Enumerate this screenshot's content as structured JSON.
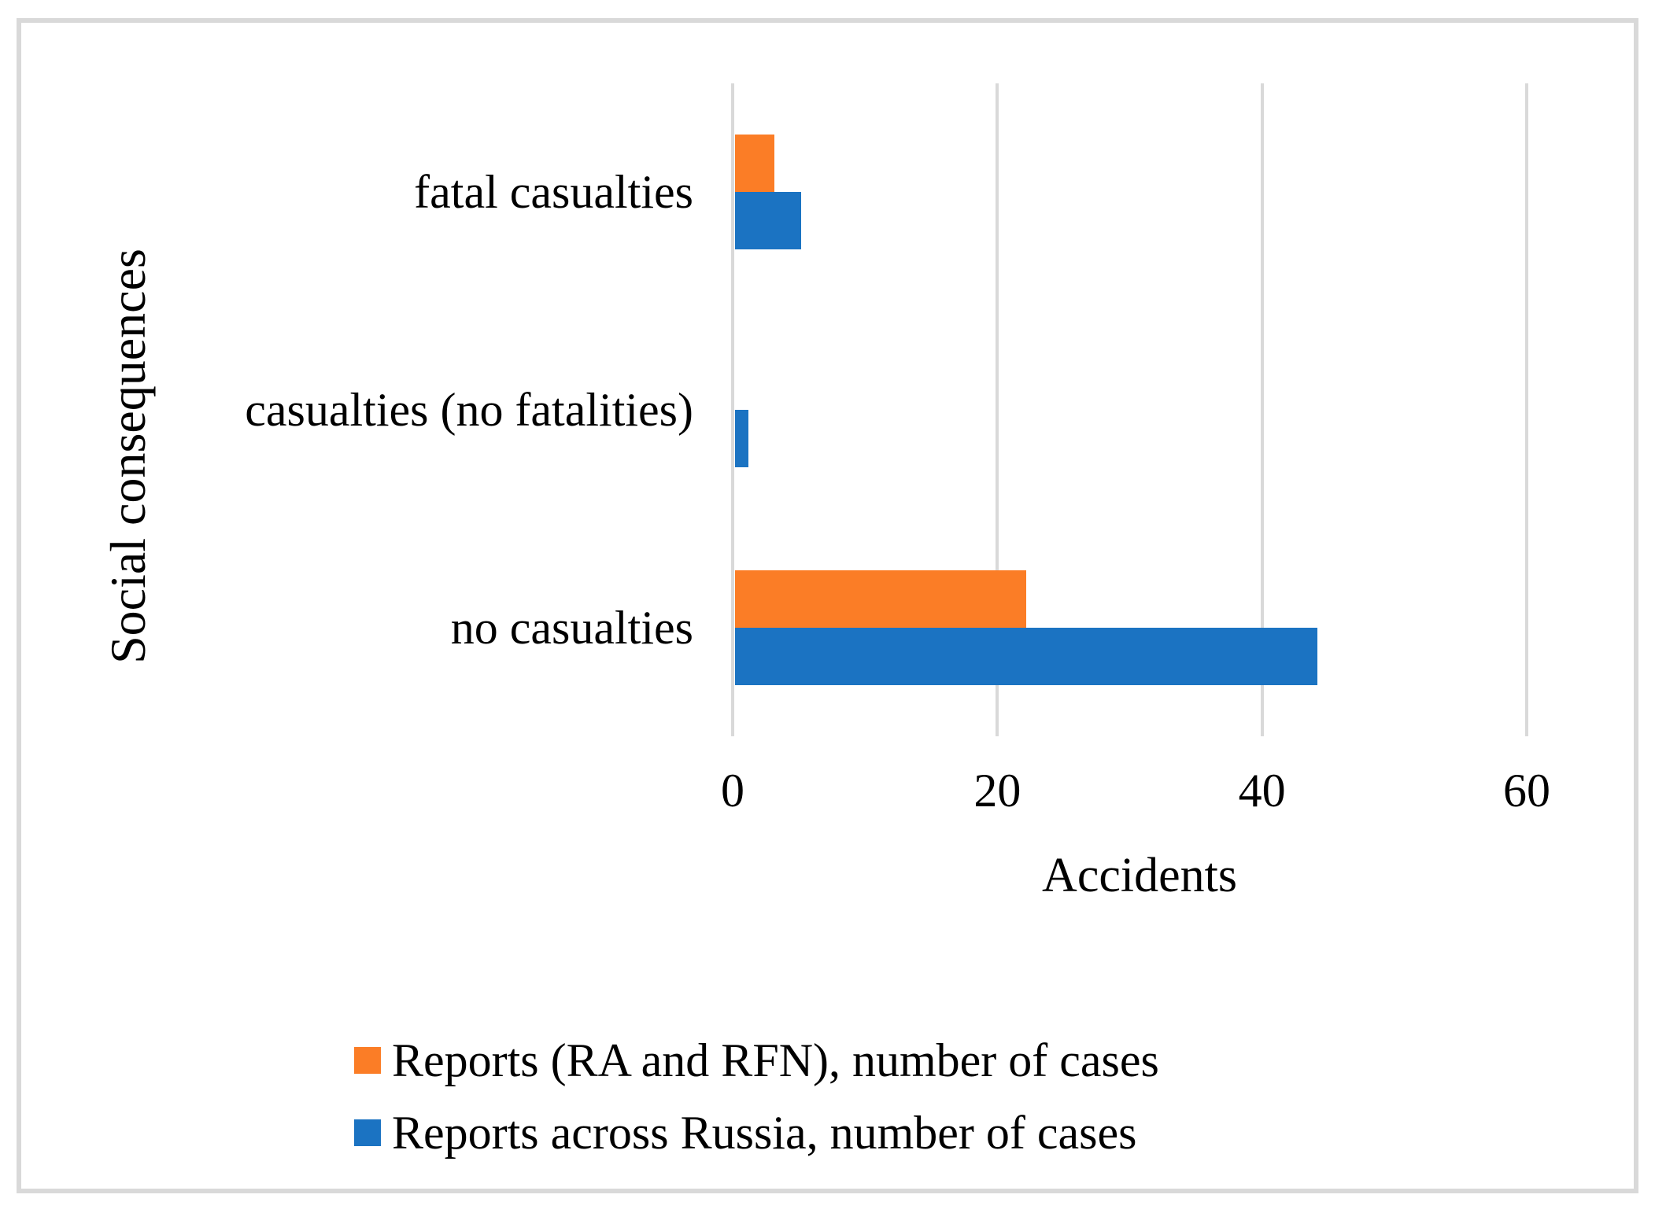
{
  "chart_data": {
    "type": "bar",
    "orientation": "horizontal",
    "title": "",
    "xlabel": "Accidents",
    "ylabel": "Social consequences",
    "categories": [
      "fatal casualties",
      "casualties (no fatalities)",
      "no casualties"
    ],
    "series": [
      {
        "name": "Reports (RA and RFN), number of cases",
        "color": "#FB7D26",
        "values": [
          3,
          0,
          22
        ]
      },
      {
        "name": "Reports across Russia, number of cases",
        "color": "#1B73C2",
        "values": [
          5,
          1,
          44
        ]
      }
    ],
    "xlim": [
      0,
      60
    ],
    "xticks": [
      0,
      20,
      40,
      60
    ],
    "grid": "vertical-gridlines",
    "legend_position": "bottom-left"
  },
  "style": {
    "background": "#FFFFFF",
    "frame_color": "#D9D9D9",
    "gridline_color": "#D9D9D9",
    "text_color": "#000000"
  }
}
